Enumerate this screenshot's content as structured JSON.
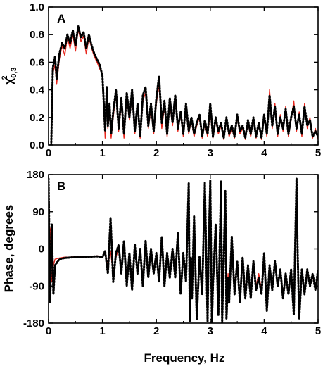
{
  "colors": {
    "red_series": "#e8281e",
    "black_series": "#000000",
    "axes": "#000000"
  },
  "xlabel": "Frequency, Hz",
  "chart_data": [
    {
      "type": "line",
      "panel_label": "A",
      "ylabel_main": "χ",
      "ylabel_sup": "2",
      "ylabel_sub": "0,3",
      "xlim": [
        0,
        5
      ],
      "ylim": [
        0,
        1.0
      ],
      "xticks": [
        0,
        1,
        2,
        3,
        4,
        5
      ],
      "xtick_labels": [
        "0",
        "1",
        "2",
        "3",
        "4",
        "5"
      ],
      "yticks": [
        0,
        0.2,
        0.4,
        0.6,
        0.8,
        1.0
      ],
      "ytick_labels": [
        "0.0",
        "0.2",
        "0.4",
        "0.6",
        "0.8",
        "1.0"
      ],
      "grid": false,
      "series": [
        {
          "style": "solid-red",
          "x": [
            0.05,
            0.08,
            0.12,
            0.15,
            0.2,
            0.25,
            0.3,
            0.35,
            0.4,
            0.45,
            0.5,
            0.55,
            0.6,
            0.65,
            0.7,
            0.75,
            0.8,
            0.85,
            0.9,
            0.95,
            1.0,
            1.05,
            1.08,
            1.1,
            1.13,
            1.16,
            1.2,
            1.25,
            1.3,
            1.35,
            1.4,
            1.45,
            1.5,
            1.55,
            1.6,
            1.65,
            1.7,
            1.75,
            1.8,
            1.85,
            1.9,
            1.95,
            2.0,
            2.05,
            2.1,
            2.15,
            2.2,
            2.25,
            2.3,
            2.35,
            2.4,
            2.45,
            2.5,
            2.55,
            2.6,
            2.65,
            2.7,
            2.75,
            2.8,
            2.85,
            2.9,
            2.95,
            3.0,
            3.05,
            3.1,
            3.15,
            3.2,
            3.25,
            3.3,
            3.35,
            3.4,
            3.45,
            3.5,
            3.55,
            3.6,
            3.65,
            3.7,
            3.75,
            3.8,
            3.85,
            3.9,
            3.95,
            4.0,
            4.05,
            4.1,
            4.15,
            4.2,
            4.25,
            4.3,
            4.35,
            4.4,
            4.45,
            4.5,
            4.55,
            4.6,
            4.65,
            4.7,
            4.75,
            4.8,
            4.85,
            4.9,
            4.95,
            5.0
          ],
          "y": [
            0.0,
            0.52,
            0.58,
            0.44,
            0.62,
            0.72,
            0.65,
            0.78,
            0.7,
            0.8,
            0.68,
            0.84,
            0.75,
            0.79,
            0.66,
            0.78,
            0.7,
            0.64,
            0.6,
            0.55,
            0.52,
            0.05,
            0.38,
            0.12,
            0.25,
            0.05,
            0.2,
            0.38,
            0.1,
            0.3,
            0.05,
            0.35,
            0.18,
            0.36,
            0.08,
            0.28,
            0.05,
            0.32,
            0.38,
            0.12,
            0.26,
            0.08,
            0.3,
            0.44,
            0.12,
            0.28,
            0.06,
            0.3,
            0.14,
            0.34,
            0.1,
            0.22,
            0.06,
            0.28,
            0.08,
            0.18,
            0.06,
            0.14,
            0.2,
            0.05,
            0.16,
            0.06,
            0.24,
            0.05,
            0.18,
            0.08,
            0.14,
            0.04,
            0.18,
            0.06,
            0.12,
            0.05,
            0.2,
            0.08,
            0.12,
            0.04,
            0.16,
            0.06,
            0.18,
            0.05,
            0.14,
            0.04,
            0.2,
            0.06,
            0.4,
            0.12,
            0.3,
            0.06,
            0.22,
            0.1,
            0.28,
            0.06,
            0.18,
            0.32,
            0.1,
            0.24,
            0.06,
            0.3,
            0.12,
            0.2,
            0.05,
            0.12,
            0.04
          ],
          "color": "#e8281e"
        },
        {
          "style": "dotted-black",
          "x": [
            0.05,
            0.08,
            0.12,
            0.15,
            0.2,
            0.25,
            0.3,
            0.35,
            0.4,
            0.45,
            0.5,
            0.55,
            0.6,
            0.65,
            0.7,
            0.75,
            0.8,
            0.85,
            0.9,
            0.95,
            1.0,
            1.05,
            1.08,
            1.1,
            1.13,
            1.16,
            1.2,
            1.25,
            1.3,
            1.35,
            1.4,
            1.45,
            1.5,
            1.55,
            1.6,
            1.65,
            1.7,
            1.75,
            1.8,
            1.85,
            1.9,
            1.95,
            2.0,
            2.05,
            2.1,
            2.15,
            2.2,
            2.25,
            2.3,
            2.35,
            2.4,
            2.45,
            2.5,
            2.55,
            2.6,
            2.65,
            2.7,
            2.75,
            2.8,
            2.85,
            2.9,
            2.95,
            3.0,
            3.05,
            3.1,
            3.15,
            3.2,
            3.25,
            3.3,
            3.35,
            3.4,
            3.45,
            3.5,
            3.55,
            3.6,
            3.65,
            3.7,
            3.75,
            3.8,
            3.85,
            3.9,
            3.95,
            4.0,
            4.05,
            4.1,
            4.15,
            4.2,
            4.25,
            4.3,
            4.35,
            4.4,
            4.45,
            4.5,
            4.55,
            4.6,
            4.65,
            4.7,
            4.75,
            4.8,
            4.85,
            4.9,
            4.95,
            5.0
          ],
          "y": [
            0.0,
            0.56,
            0.64,
            0.48,
            0.66,
            0.74,
            0.7,
            0.8,
            0.74,
            0.83,
            0.72,
            0.86,
            0.78,
            0.82,
            0.7,
            0.8,
            0.72,
            0.66,
            0.62,
            0.58,
            0.5,
            0.1,
            0.42,
            0.14,
            0.3,
            0.08,
            0.24,
            0.4,
            0.12,
            0.34,
            0.08,
            0.38,
            0.2,
            0.4,
            0.1,
            0.3,
            0.06,
            0.36,
            0.42,
            0.14,
            0.3,
            0.1,
            0.34,
            0.5,
            0.16,
            0.32,
            0.08,
            0.34,
            0.16,
            0.36,
            0.12,
            0.24,
            0.08,
            0.3,
            0.1,
            0.2,
            0.08,
            0.16,
            0.22,
            0.06,
            0.18,
            0.08,
            0.3,
            0.06,
            0.2,
            0.1,
            0.16,
            0.05,
            0.2,
            0.08,
            0.14,
            0.06,
            0.22,
            0.1,
            0.14,
            0.05,
            0.18,
            0.08,
            0.2,
            0.06,
            0.16,
            0.05,
            0.22,
            0.08,
            0.36,
            0.14,
            0.28,
            0.08,
            0.2,
            0.12,
            0.26,
            0.08,
            0.2,
            0.28,
            0.12,
            0.22,
            0.08,
            0.28,
            0.14,
            0.18,
            0.06,
            0.1,
            0.06
          ],
          "color": "#000000"
        }
      ]
    },
    {
      "type": "line",
      "panel_label": "B",
      "ylabel": "Phase, degrees",
      "xlim": [
        0,
        5
      ],
      "ylim": [
        -180,
        180
      ],
      "xticks": [
        0,
        1,
        2,
        3,
        4,
        5
      ],
      "xtick_labels": [
        "0",
        "1",
        "2",
        "3",
        "4",
        "5"
      ],
      "yticks": [
        -180,
        -90,
        0,
        90,
        180
      ],
      "ytick_labels": [
        "-180",
        "-90",
        "0",
        "90",
        "180"
      ],
      "grid": false,
      "series": [
        {
          "style": "solid-red",
          "x": [
            0.0,
            0.03,
            0.06,
            0.09,
            0.12,
            0.2,
            0.3,
            0.4,
            0.5,
            0.6,
            0.7,
            0.8,
            0.9,
            1.0,
            1.05,
            1.1,
            1.15,
            1.2,
            1.25,
            1.3,
            1.35,
            1.4,
            1.45,
            1.5,
            1.55,
            1.6,
            1.65,
            1.7,
            1.75,
            1.8,
            1.85,
            1.9,
            1.95,
            2.0,
            2.05,
            2.1,
            2.15,
            2.2,
            2.25,
            2.3,
            2.35,
            2.4,
            2.45,
            2.5,
            2.55,
            2.6,
            2.62,
            2.64,
            2.66,
            2.7,
            2.75,
            2.8,
            2.85,
            2.9,
            2.95,
            2.97,
            3.0,
            3.03,
            3.05,
            3.1,
            3.15,
            3.2,
            3.22,
            3.25,
            3.28,
            3.3,
            3.33,
            3.35,
            3.4,
            3.45,
            3.5,
            3.55,
            3.6,
            3.65,
            3.7,
            3.75,
            3.8,
            3.85,
            3.9,
            3.95,
            4.0,
            4.05,
            4.1,
            4.15,
            4.2,
            4.25,
            4.3,
            4.35,
            4.4,
            4.45,
            4.5,
            4.55,
            4.6,
            4.62,
            4.65,
            4.7,
            4.75,
            4.8,
            4.85,
            4.9,
            4.95,
            5.0
          ],
          "y": [
            -60,
            50,
            -80,
            -40,
            -25,
            -22,
            -20,
            -20,
            -19,
            -19,
            -18,
            -18,
            -17,
            -18,
            -10,
            -40,
            -5,
            -60,
            -20,
            0,
            -45,
            10,
            -70,
            -20,
            -85,
            0,
            -50,
            -10,
            -75,
            10,
            -60,
            -10,
            -50,
            -20,
            -70,
            20,
            -80,
            -20,
            -60,
            -10,
            -60,
            30,
            -90,
            -20,
            -60,
            150,
            -160,
            -30,
            -100,
            60,
            -140,
            -40,
            -90,
            140,
            -150,
            -20,
            160,
            -170,
            -80,
            40,
            -130,
            150,
            -170,
            -40,
            130,
            -160,
            -60,
            -120,
            20,
            -90,
            -40,
            -120,
            -30,
            -100,
            -50,
            -110,
            -40,
            -90,
            -60,
            -100,
            -20,
            -130,
            -50,
            -90,
            -40,
            -80,
            -60,
            -110,
            -70,
            -100,
            -60,
            -140,
            160,
            -20,
            -150,
            -60,
            -100,
            -60,
            -80,
            -70,
            -90,
            -60
          ],
          "color": "#e8281e"
        },
        {
          "style": "dotted-black",
          "x": [
            0.0,
            0.03,
            0.06,
            0.09,
            0.12,
            0.2,
            0.3,
            0.4,
            0.5,
            0.6,
            0.7,
            0.8,
            0.9,
            1.0,
            1.05,
            1.1,
            1.15,
            1.2,
            1.25,
            1.3,
            1.35,
            1.4,
            1.45,
            1.5,
            1.55,
            1.6,
            1.65,
            1.7,
            1.75,
            1.8,
            1.85,
            1.9,
            1.95,
            2.0,
            2.05,
            2.1,
            2.15,
            2.2,
            2.25,
            2.3,
            2.35,
            2.4,
            2.45,
            2.5,
            2.55,
            2.6,
            2.62,
            2.64,
            2.66,
            2.7,
            2.75,
            2.8,
            2.85,
            2.9,
            2.95,
            2.97,
            3.0,
            3.03,
            3.05,
            3.1,
            3.15,
            3.2,
            3.22,
            3.25,
            3.28,
            3.3,
            3.33,
            3.35,
            3.4,
            3.45,
            3.5,
            3.55,
            3.6,
            3.65,
            3.7,
            3.75,
            3.8,
            3.85,
            3.9,
            3.95,
            4.0,
            4.05,
            4.1,
            4.15,
            4.2,
            4.25,
            4.3,
            4.35,
            4.4,
            4.45,
            4.5,
            4.55,
            4.6,
            4.62,
            4.65,
            4.7,
            4.75,
            4.8,
            4.85,
            4.9,
            4.95,
            5.0
          ],
          "y": [
            170,
            -130,
            60,
            -110,
            -40,
            -25,
            -22,
            -21,
            -20,
            -20,
            -19,
            -19,
            -18,
            -20,
            -5,
            -60,
            75,
            -80,
            -10,
            10,
            -60,
            20,
            -90,
            -10,
            -100,
            10,
            -60,
            0,
            -90,
            20,
            -70,
            0,
            -60,
            -10,
            -80,
            30,
            -90,
            -10,
            -70,
            0,
            -70,
            40,
            -110,
            -10,
            -80,
            160,
            -175,
            -20,
            -120,
            80,
            -170,
            -20,
            -110,
            160,
            -175,
            0,
            165,
            -180,
            -90,
            60,
            -160,
            165,
            -180,
            -20,
            140,
            -170,
            -70,
            -130,
            30,
            -110,
            -30,
            -130,
            -20,
            -120,
            -40,
            -120,
            -30,
            -100,
            -70,
            -110,
            -10,
            -150,
            -40,
            -100,
            -30,
            -90,
            -50,
            -120,
            -60,
            -110,
            -50,
            -160,
            170,
            0,
            -170,
            -50,
            -110,
            -50,
            -90,
            -60,
            -100,
            -50
          ],
          "color": "#000000"
        }
      ]
    }
  ]
}
